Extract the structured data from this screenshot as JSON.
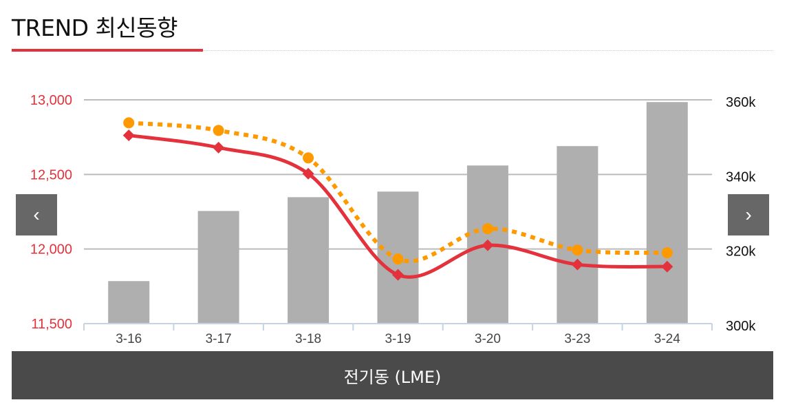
{
  "header": {
    "title": "TREND 최신동향"
  },
  "footer": {
    "label": "전기동 (LME)"
  },
  "nav": {
    "prev": "‹",
    "next": "›"
  },
  "colors": {
    "accent": "#e3323b",
    "orange": "#ff9900",
    "bar": "#afafaf"
  },
  "chart_data": {
    "type": "bar+line",
    "categories": [
      "3-16",
      "3-17",
      "3-18",
      "3-19",
      "3-20",
      "3-23",
      "3-24"
    ],
    "left_axis": {
      "range": [
        11500,
        13000
      ],
      "ticks": [
        "11,500",
        "12,000",
        "12,500",
        "13,000"
      ],
      "tick_values": [
        11500,
        12000,
        12500,
        13000
      ]
    },
    "right_axis": {
      "range": [
        300,
        360
      ],
      "ticks": [
        "300k",
        "320k",
        "340k",
        "360k"
      ],
      "tick_values": [
        300,
        320,
        340,
        360
      ]
    },
    "series": [
      {
        "name": "bars",
        "type": "bar",
        "axis": "right",
        "values": [
          311.4,
          330.2,
          333.9,
          335.4,
          342.4,
          347.6,
          359.4
        ]
      },
      {
        "name": "red-line",
        "type": "line",
        "axis": "left",
        "values": [
          12762,
          12680,
          12505,
          11827,
          12025,
          11896,
          11882
        ]
      },
      {
        "name": "orange-dotted",
        "type": "line",
        "axis": "left",
        "values": [
          12846,
          12795,
          12611,
          11933,
          12136,
          11993,
          11975
        ]
      }
    ],
    "grid": true
  }
}
